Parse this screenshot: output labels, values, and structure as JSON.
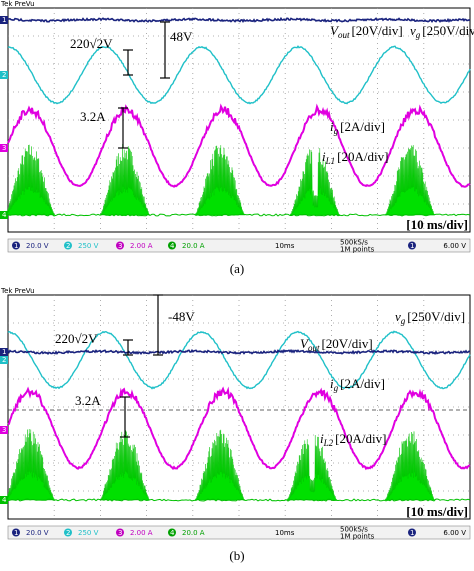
{
  "panels": [
    {
      "header": "Tek PreVu",
      "caption": "(a)",
      "vout": {
        "symbol": "V",
        "sub": "out",
        "scale": "[20V/div]"
      },
      "vg": {
        "symbol": "v",
        "sub": "g",
        "scale": "[250V/div]"
      },
      "ig": {
        "symbol": "i",
        "sub": "g",
        "scale": "[2A/div]"
      },
      "il": {
        "symbol": "i",
        "sub": "L1",
        "scale": "[20A/div]"
      },
      "peak_label": "220√2V",
      "dc_label": "48V",
      "current_label": "3.2A",
      "timebase": "[10 ms/div]",
      "channel_markers": [
        "1",
        "2",
        "3",
        "4"
      ],
      "status": {
        "channels": [
          {
            "num": "1",
            "scale": "20.0 V"
          },
          {
            "num": "2",
            "scale": "250 V"
          },
          {
            "num": "3",
            "scale": "2.00 A"
          },
          {
            "num": "4",
            "scale": "20.0 A"
          }
        ],
        "time": "10ms",
        "rate": "500kS/s",
        "points": "1M points",
        "trigger_ch": "1",
        "trigger_level": "6.00 V"
      }
    },
    {
      "header": "Tek PreVu",
      "caption": "(b)",
      "vout": {
        "symbol": "V",
        "sub": "out",
        "scale": "[20V/div]"
      },
      "vg": {
        "symbol": "v",
        "sub": "g",
        "scale": "[250V/div]"
      },
      "ig": {
        "symbol": "i",
        "sub": "g",
        "scale": "[2A/div]"
      },
      "il": {
        "symbol": "i",
        "sub": "L2",
        "scale": "[20A/div]"
      },
      "peak_label": "220√2V",
      "dc_label": "-48V",
      "current_label": "3.2A",
      "timebase": "[10 ms/div]",
      "channel_markers": [
        "1",
        "2",
        "3",
        "4"
      ],
      "status": {
        "channels": [
          {
            "num": "1",
            "scale": "20.0 V"
          },
          {
            "num": "2",
            "scale": "250 V"
          },
          {
            "num": "3",
            "scale": "2.00 A"
          },
          {
            "num": "4",
            "scale": "20.0 A"
          }
        ],
        "time": "10ms",
        "rate": "500kS/s",
        "points": "1M points",
        "trigger_ch": "1",
        "trigger_level": "6.00 V"
      }
    }
  ]
}
